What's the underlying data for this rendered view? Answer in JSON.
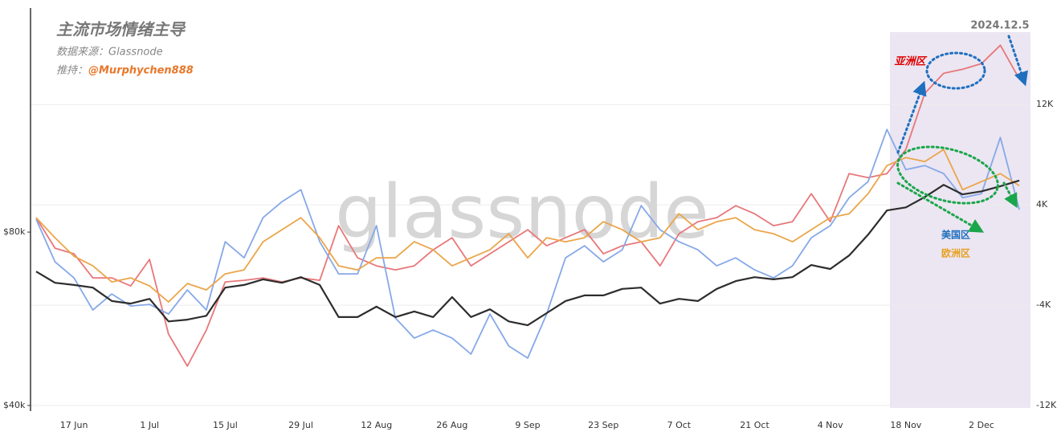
{
  "chart_data": {
    "type": "line",
    "title": "主流市场情绪主导",
    "subtitle": "数据来源：Glassnode",
    "credit_label": "推持：",
    "credit_handle": "@Murphychen888",
    "watermark": "glassnode",
    "annotation": "2024.12.5",
    "categories": [
      null,
      null,
      "17 Jun",
      null,
      null,
      null,
      "1 Jul",
      null,
      null,
      null,
      "15 Jul",
      null,
      null,
      null,
      "29 Jul",
      null,
      null,
      null,
      "12 Aug",
      null,
      null,
      null,
      "26 Aug",
      null,
      null,
      null,
      "9 Sep",
      null,
      null,
      null,
      "23 Sep",
      null,
      null,
      null,
      "7 Oct",
      null,
      null,
      null,
      "21 Oct",
      null,
      null,
      null,
      "4 Nov",
      null,
      null,
      null,
      "18 Nov",
      null,
      null,
      null,
      "2 Dec",
      null,
      null
    ],
    "ylim": [
      40000,
      131700
    ],
    "yticks": [
      {
        "value": 40000,
        "label": "$40k"
      },
      {
        "value": 80000,
        "label": "$80k"
      }
    ],
    "y2lim": [
      -12000,
      19700
    ],
    "y2ticks": [
      {
        "value": -12000,
        "label": "-12K"
      },
      {
        "value": -4000,
        "label": "-4K"
      },
      {
        "value": 4000,
        "label": "4K"
      },
      {
        "value": 12000,
        "label": "12K"
      }
    ],
    "grid": true,
    "series": [
      {
        "color": "#2d2d2d",
        "values": [
          70900,
          68300,
          67800,
          67200,
          64100,
          63500,
          64600,
          59400,
          59800,
          60700,
          67200,
          67800,
          69100,
          68300,
          69600,
          67800,
          60400,
          60400,
          62800,
          60400,
          61700,
          60400,
          65000,
          60400,
          62200,
          59400,
          58500,
          61300,
          64100,
          65400,
          65400,
          66900,
          67200,
          63500,
          64600,
          64100,
          66900,
          68700,
          69600,
          69100,
          69600,
          72400,
          71500,
          74600,
          79400,
          85000,
          85700,
          88100,
          90900,
          88700,
          89400,
          90600,
          91900
        ]
      },
      {
        "name": "亚洲区",
        "color": "#e8777a",
        "axis": "y2",
        "values": [
          2976,
          544,
          96,
          -1824,
          -1824,
          -2464,
          -352,
          -6304,
          -8864,
          -5984,
          -2144,
          -2016,
          -1824,
          -2144,
          -1824,
          -2016,
          2336,
          -224,
          -864,
          -1184,
          -864,
          416,
          1376,
          -864,
          96,
          1056,
          2016,
          736,
          1376,
          2016,
          96,
          736,
          1056,
          -864,
          1696,
          2656,
          2976,
          3936,
          3296,
          2336,
          2656,
          4896,
          2656,
          6496,
          6176,
          6496,
          8416,
          12896,
          14496,
          14816,
          15264,
          16736,
          14048
        ]
      },
      {
        "name": "美国区",
        "color": "#86a8e8",
        "axis": "y2",
        "values": [
          2848,
          -544,
          -1824,
          -4384,
          -3104,
          -4064,
          -3936,
          -4704,
          -2784,
          -4384,
          1056,
          -224,
          2976,
          4256,
          5216,
          1056,
          -1504,
          -1504,
          2336,
          -5024,
          -6624,
          -5984,
          -6624,
          -7904,
          -4704,
          -7264,
          -8224,
          -4704,
          -224,
          736,
          -544,
          416,
          3936,
          2016,
          1056,
          416,
          -864,
          -224,
          -1184,
          -1824,
          -864,
          1376,
          2336,
          4576,
          5856,
          10016,
          6816,
          7136,
          6496,
          4576,
          4896,
          9376,
          3616
        ]
      },
      {
        "name": "欧洲区",
        "color": "#eba54a",
        "axis": "y2",
        "values": [
          2976,
          1376,
          -96,
          -864,
          -2144,
          -1824,
          -2464,
          -3744,
          -2272,
          -2784,
          -1504,
          -1184,
          1056,
          2016,
          2976,
          1376,
          -864,
          -1184,
          -224,
          -224,
          1056,
          416,
          -864,
          -224,
          416,
          1696,
          -224,
          1376,
          1056,
          1376,
          2656,
          2016,
          1056,
          1376,
          3296,
          2016,
          2656,
          2976,
          2016,
          1696,
          1056,
          2016,
          2976,
          3296,
          4896,
          7136,
          7776,
          7456,
          8416,
          5216,
          5856,
          6496,
          5536
        ]
      }
    ]
  }
}
